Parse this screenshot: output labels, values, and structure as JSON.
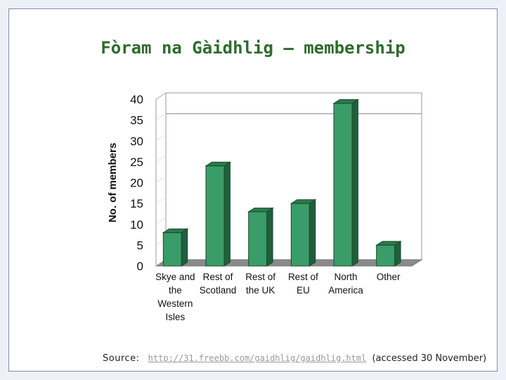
{
  "page": {
    "title": "Fòram na Gàidhlig – membership",
    "source_label": "Source:",
    "source_url": "http://31.freebb.com/gaidhlig/gaidhlig.html",
    "source_note": "(accessed 30 November)"
  },
  "chart_data": {
    "type": "bar",
    "title": "Fòram na Gàidhlig – membership",
    "xlabel": "",
    "ylabel": "No. of members",
    "ylim": [
      0,
      40
    ],
    "yticks": [
      0,
      5,
      10,
      15,
      20,
      25,
      30,
      35,
      40
    ],
    "grid": false,
    "categories": [
      [
        "Skye and",
        "the",
        "Western",
        "Isles"
      ],
      [
        "Rest of",
        "Scotland"
      ],
      [
        "Rest of",
        "the UK"
      ],
      [
        "Rest of",
        "EU"
      ],
      [
        "North",
        "America"
      ],
      [
        "Other"
      ]
    ],
    "values": [
      8,
      24,
      13,
      15,
      39,
      5
    ],
    "bar_color": "#3a9c68",
    "bar_top_color": "#2a7a4e",
    "bar_side_color": "#1f5f3b",
    "floor_color": "#8a8a8a"
  }
}
